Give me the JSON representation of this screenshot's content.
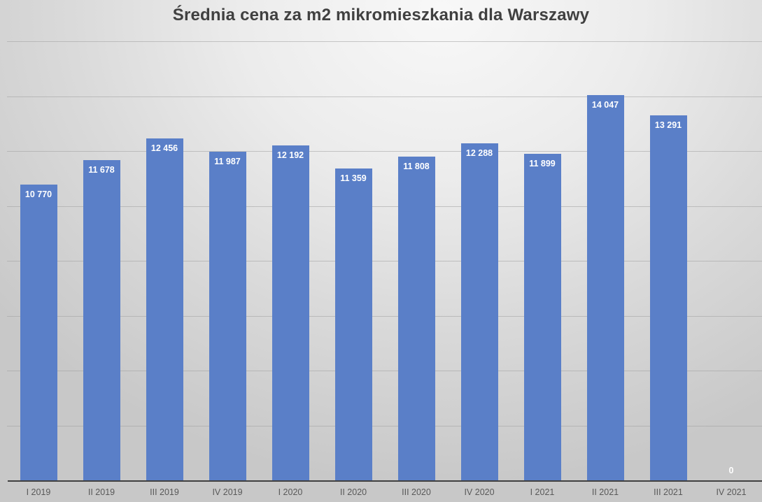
{
  "chart_data": {
    "type": "bar",
    "title": "Średnia cena za m2 mikromieszkania dla Warszawy",
    "xlabel": "",
    "ylabel": "",
    "categories": [
      "I 2019",
      "II 2019",
      "III 2019",
      "IV 2019",
      "I 2020",
      "II 2020",
      "III 2020",
      "IV 2020",
      "I 2021",
      "II 2021",
      "III 2021",
      "IV 2021"
    ],
    "values": [
      10770,
      11678,
      12456,
      11987,
      12192,
      11359,
      11808,
      12288,
      11899,
      14047,
      13291,
      0
    ],
    "value_labels": [
      "10 770",
      "11 678",
      "12 456",
      "11 987",
      "12 192",
      "11 359",
      "11 808",
      "12 288",
      "11 899",
      "14 047",
      "13 291",
      "0"
    ],
    "ylim": [
      0,
      16000
    ],
    "y_gridlines": [
      2000,
      4000,
      6000,
      8000,
      10000,
      12000,
      14000,
      16000
    ],
    "y_tick_labels_visible": false,
    "grid": true,
    "legend": "none",
    "bar_color": "#5a7fc8"
  }
}
